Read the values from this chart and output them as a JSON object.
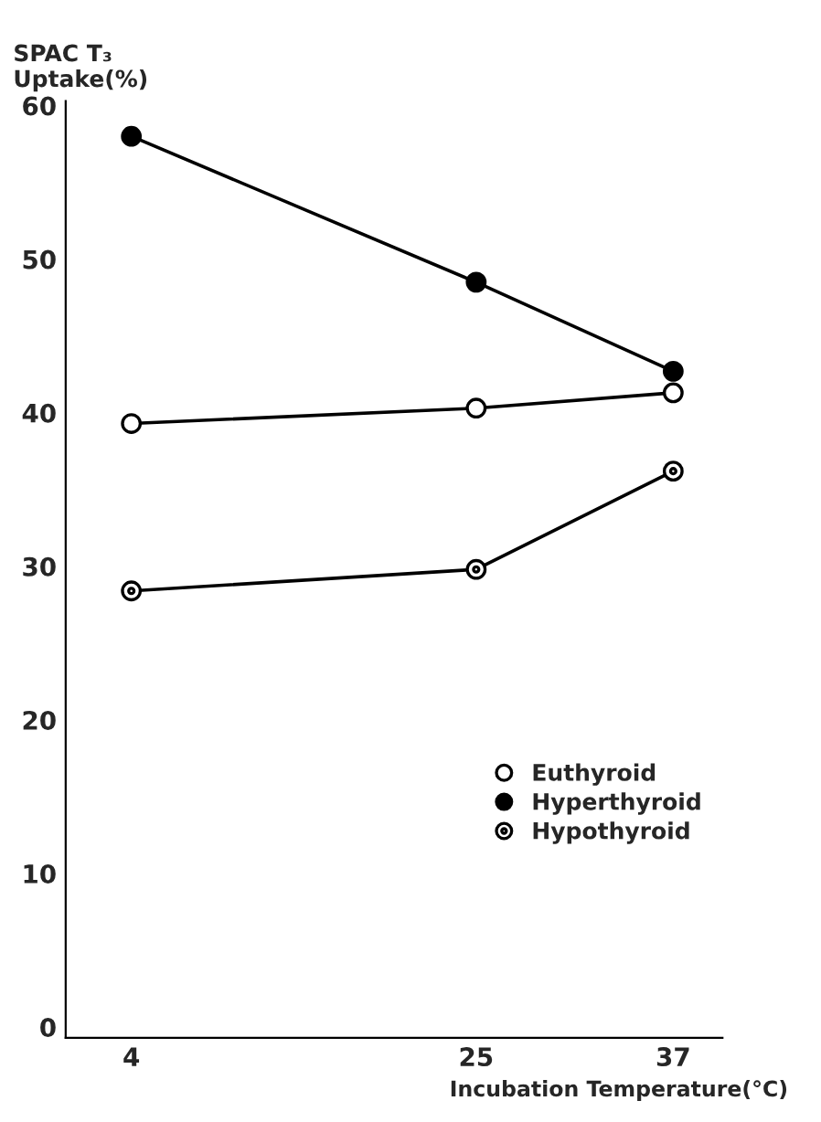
{
  "chart_data": {
    "type": "line",
    "xlabel": "Incubation Temperature(°C)",
    "ylabel": "SPAC T₃\nUptake(%)",
    "x": [
      4,
      25,
      37
    ],
    "series": [
      {
        "name": "Euthyroid",
        "color": "#000000",
        "values": [
          39.3,
          40.3,
          41.3
        ]
      },
      {
        "name": "Hyperthyroid",
        "color": "#000000",
        "values": [
          58.0,
          48.5,
          42.7
        ]
      },
      {
        "name": "Hypothyroid",
        "color": "#000000",
        "values": [
          28.4,
          29.8,
          36.2
        ]
      }
    ],
    "xlim": [
      0,
      40
    ],
    "xticks": [
      4,
      25,
      37
    ],
    "ylim": [
      -0.7,
      60.3
    ],
    "yticks": [
      0,
      10,
      20,
      30,
      40,
      50,
      60
    ],
    "grid": false,
    "legend": "right",
    "marker": "circle",
    "line_style": "solid"
  }
}
